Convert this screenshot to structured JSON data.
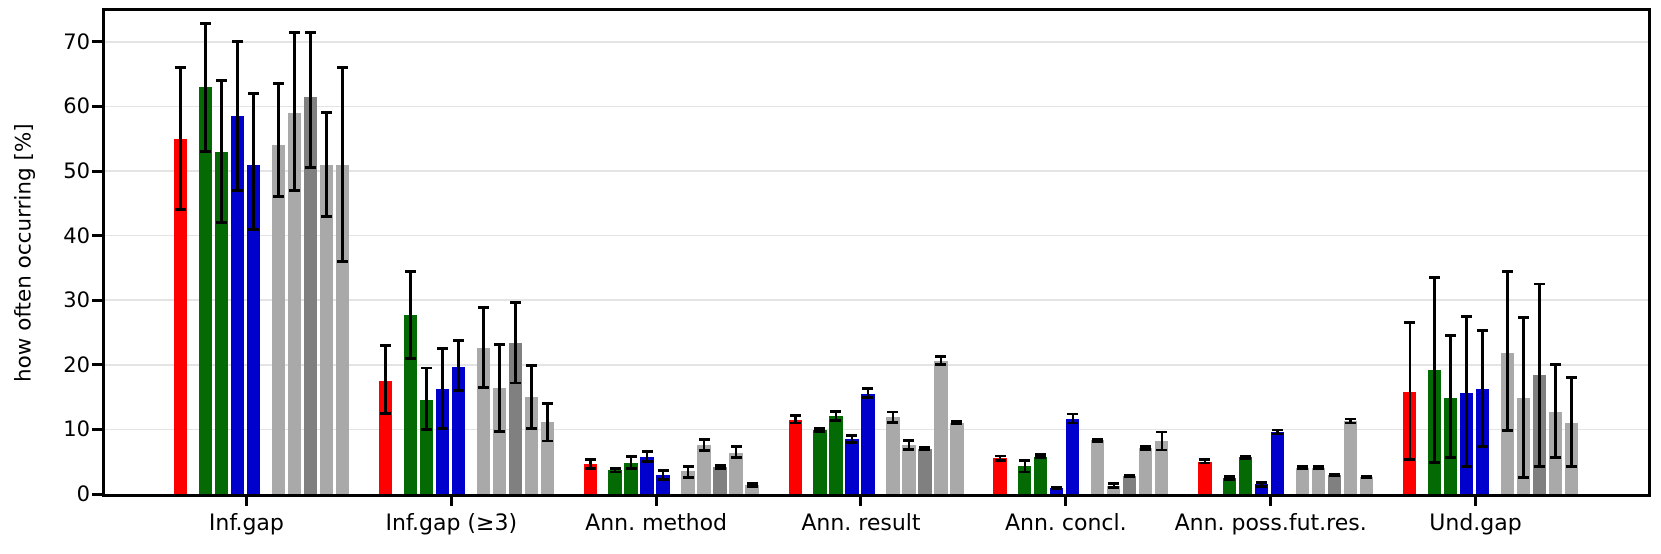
{
  "chart_data": {
    "type": "bar",
    "title": "",
    "xlabel": "",
    "ylabel": "how often occurring [%]",
    "ylim": [
      0,
      74.5
    ],
    "yticks": [
      0,
      10,
      20,
      30,
      40,
      50,
      60,
      70
    ],
    "grid": "horizontal",
    "legend_position": "none",
    "error_bars": true,
    "categories": [
      "Inf.gap",
      "Inf.gap (≥3)",
      "Ann. method",
      "Ann. result",
      "Ann. concl.",
      "Ann. poss.fut.res.",
      "Und.gap"
    ],
    "series": [
      {
        "name": "red",
        "color": "#ff0000",
        "values": [
          55.0,
          17.5,
          4.6,
          11.5,
          5.5,
          5.0,
          15.8
        ],
        "err_lo": [
          44.0,
          12.5,
          4.0,
          11.0,
          5.2,
          4.8,
          5.3
        ],
        "err_hi": [
          66.0,
          23.0,
          5.3,
          12.2,
          5.9,
          5.3,
          26.5
        ]
      },
      {
        "name": "green-a",
        "color": "#046a04",
        "values": [
          63.0,
          27.7,
          3.7,
          9.9,
          4.3,
          2.5,
          19.2
        ],
        "err_lo": [
          53.0,
          21.0,
          3.4,
          9.7,
          3.4,
          2.3,
          4.9
        ],
        "err_hi": [
          72.8,
          34.5,
          4.0,
          10.2,
          5.2,
          2.7,
          33.5
        ]
      },
      {
        "name": "green-b",
        "color": "#046a04",
        "values": [
          53.0,
          14.6,
          4.8,
          12.1,
          5.8,
          5.7,
          14.8
        ],
        "err_lo": [
          42.0,
          10.0,
          4.0,
          11.4,
          5.6,
          5.5,
          5.6
        ],
        "err_hi": [
          64.0,
          19.5,
          5.8,
          12.8,
          6.1,
          5.9,
          24.5
        ]
      },
      {
        "name": "blue-a",
        "color": "#0000cd",
        "values": [
          58.5,
          16.3,
          5.8,
          8.5,
          1.0,
          1.5,
          15.6
        ],
        "err_lo": [
          47.0,
          10.2,
          5.0,
          8.0,
          0.9,
          1.2,
          4.2
        ],
        "err_hi": [
          70.0,
          22.5,
          6.6,
          9.1,
          1.1,
          1.8,
          27.5
        ]
      },
      {
        "name": "blue-b",
        "color": "#0000cd",
        "values": [
          51.0,
          19.6,
          3.0,
          15.5,
          11.6,
          9.6,
          16.2
        ],
        "err_lo": [
          41.0,
          16.0,
          2.3,
          14.9,
          11.0,
          9.3,
          7.3
        ],
        "err_hi": [
          62.0,
          23.8,
          3.6,
          16.3,
          12.4,
          9.9,
          25.3
        ]
      },
      {
        "name": "gray-1",
        "color": "#a9a9a9",
        "values": [
          54.0,
          22.6,
          3.5,
          11.9,
          8.3,
          4.1,
          21.9
        ],
        "err_lo": [
          46.0,
          16.5,
          2.6,
          11.1,
          8.1,
          4.0,
          9.8
        ],
        "err_hi": [
          63.5,
          28.9,
          4.3,
          12.7,
          8.5,
          4.3,
          34.5
        ]
      },
      {
        "name": "gray-2",
        "color": "#a9a9a9",
        "values": [
          59.0,
          16.4,
          7.6,
          7.6,
          1.3,
          4.1,
          14.9
        ],
        "err_lo": [
          47.0,
          9.7,
          6.7,
          6.9,
          1.0,
          4.0,
          2.6
        ],
        "err_hi": [
          71.5,
          23.1,
          8.4,
          8.3,
          1.6,
          4.3,
          27.3
        ]
      },
      {
        "name": "gray-3-dark",
        "color": "#808080",
        "values": [
          61.5,
          23.4,
          4.2,
          7.0,
          2.8,
          2.9,
          18.5
        ],
        "err_lo": [
          50.5,
          17.2,
          4.0,
          6.8,
          2.7,
          2.8,
          4.2
        ],
        "err_hi": [
          71.5,
          29.6,
          4.4,
          7.2,
          2.9,
          3.0,
          32.5
        ]
      },
      {
        "name": "gray-4",
        "color": "#a9a9a9",
        "values": [
          51.0,
          15.0,
          6.4,
          20.6,
          7.1,
          11.3,
          12.7
        ],
        "err_lo": [
          43.0,
          10.2,
          5.6,
          20.0,
          6.9,
          11.0,
          5.7
        ],
        "err_hi": [
          59.0,
          19.9,
          7.4,
          21.3,
          7.3,
          11.6,
          20.0
        ]
      },
      {
        "name": "gray-5",
        "color": "#a9a9a9",
        "values": [
          51.0,
          11.2,
          1.4,
          11.0,
          8.2,
          2.7,
          11.0
        ],
        "err_lo": [
          36.0,
          8.2,
          1.2,
          10.9,
          6.8,
          2.6,
          4.3
        ],
        "err_hi": [
          66.0,
          14.0,
          1.6,
          11.3,
          9.6,
          2.8,
          18.0
        ]
      }
    ]
  },
  "style_colors": {
    "background": "#ffffff",
    "spine": "#000000",
    "gridline": "#e4e4e4",
    "error_bar": "#000000"
  }
}
